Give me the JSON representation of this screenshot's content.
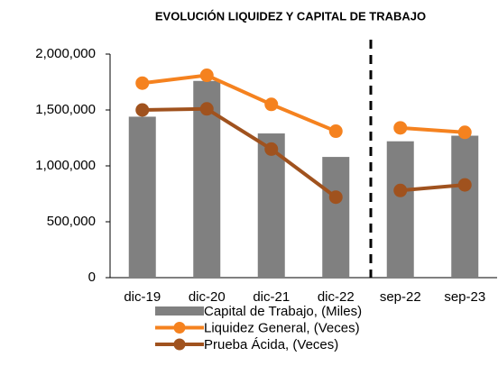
{
  "chart_data": {
    "type": "bar",
    "title": "EVOLUCIÓN LIQUIDEZ Y CAPITAL DE TRABAJO",
    "categories": [
      "dic-19",
      "dic-20",
      "dic-21",
      "dic-22",
      "sep-22",
      "sep-23"
    ],
    "series": [
      {
        "name": "Capital de Trabajo, (Miles)",
        "type": "bar",
        "color": "#808080",
        "values": [
          1440000,
          1760000,
          1290000,
          1080000,
          1220000,
          1270000
        ]
      },
      {
        "name": "Liquidez General, (Veces)",
        "type": "line",
        "axis": "y2",
        "color": "#f5821f",
        "values": [
          1.74,
          1.81,
          1.55,
          1.31,
          1.34,
          1.3
        ]
      },
      {
        "name": "Prueba Ácida, (Veces)",
        "type": "line",
        "axis": "y2",
        "color": "#a0521e",
        "values": [
          1.5,
          1.51,
          1.15,
          0.72,
          0.78,
          0.83
        ]
      }
    ],
    "ylim": [
      0,
      2000000
    ],
    "yticks": [
      0,
      {
        "value": 500000,
        "label": "500,000"
      },
      {
        "value": 1000000,
        "label": "1,000,000"
      },
      {
        "value": 1500000,
        "label": "1,500,000"
      },
      {
        "value": 2000000,
        "label": "2,000,000"
      }
    ],
    "y2lim": [
      0,
      2
    ],
    "grid": false,
    "legend": "bottom"
  }
}
